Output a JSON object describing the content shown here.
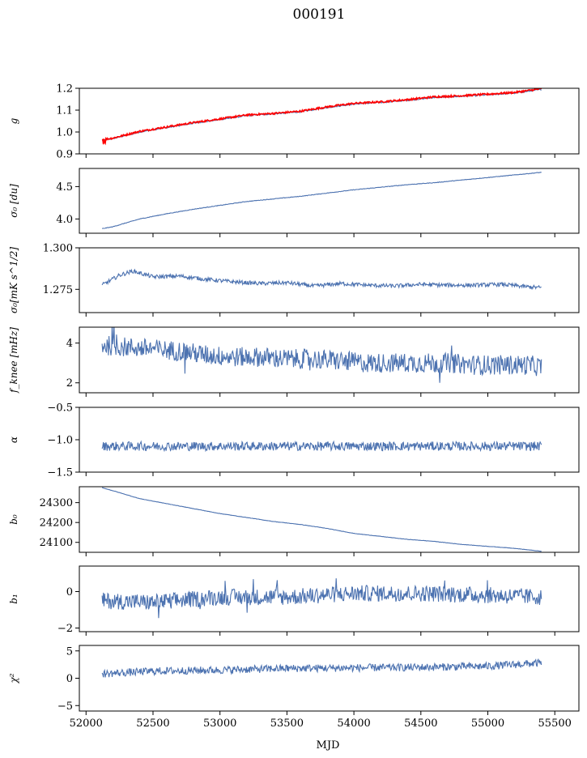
{
  "figure": {
    "title": "000191",
    "xlabel": "MJD"
  },
  "chart_data": [
    {
      "type": "line",
      "ylabel": "g",
      "ylim": [
        0.9,
        1.2
      ],
      "yticks": [
        "0.9",
        "1.0",
        "1.1",
        "1.2"
      ],
      "xlim": [
        51950,
        55680
      ],
      "series": [
        {
          "color": "#4c72b0",
          "x": [
            52120,
            52200,
            52400,
            52600,
            52800,
            53000,
            53200,
            53400,
            53600,
            53800,
            54000,
            54200,
            54400,
            54600,
            54800,
            55000,
            55200,
            55400
          ],
          "y": [
            0.962,
            0.97,
            1.0,
            1.02,
            1.04,
            1.057,
            1.075,
            1.083,
            1.092,
            1.112,
            1.128,
            1.135,
            1.145,
            1.158,
            1.163,
            1.17,
            1.178,
            1.195
          ],
          "noise": 0.003
        },
        {
          "color": "#ff0000",
          "x": [
            52120,
            52200,
            52400,
            52600,
            52800,
            53000,
            53200,
            53400,
            53600,
            53800,
            54000,
            54200,
            54400,
            54600,
            54800,
            55000,
            55200,
            55400
          ],
          "y": [
            0.965,
            0.972,
            1.003,
            1.023,
            1.043,
            1.06,
            1.078,
            1.085,
            1.095,
            1.115,
            1.131,
            1.138,
            1.148,
            1.161,
            1.166,
            1.173,
            1.181,
            1.198
          ],
          "noise": 0.004
        }
      ]
    },
    {
      "type": "line",
      "ylabel": "σ₀ [du]",
      "ylim": [
        3.78,
        4.78
      ],
      "yticks": [
        "4.0",
        "4.5"
      ],
      "xlim": [
        51950,
        55680
      ],
      "series": [
        {
          "color": "#4c72b0",
          "x": [
            52120,
            52200,
            52400,
            52600,
            52800,
            53000,
            53200,
            53400,
            53600,
            53800,
            54000,
            54200,
            54400,
            54600,
            54800,
            55000,
            55200,
            55400
          ],
          "y": [
            3.85,
            3.88,
            4.0,
            4.08,
            4.15,
            4.21,
            4.27,
            4.31,
            4.35,
            4.4,
            4.45,
            4.49,
            4.53,
            4.56,
            4.6,
            4.64,
            4.68,
            4.72
          ],
          "noise": 0.004
        }
      ]
    },
    {
      "type": "line",
      "ylabel": "σ₀[mK s^1/2]",
      "ylim": [
        1.261,
        1.3
      ],
      "yticks": [
        "1.275",
        "1.300"
      ],
      "xlim": [
        51950,
        55680
      ],
      "series": [
        {
          "color": "#4c72b0",
          "x": [
            52120,
            52250,
            52350,
            52500,
            52700,
            52900,
            53100,
            53300,
            53500,
            53700,
            53900,
            54100,
            54300,
            54500,
            54700,
            54900,
            55100,
            55300,
            55400
          ],
          "y": [
            1.2775,
            1.2835,
            1.286,
            1.2825,
            1.283,
            1.281,
            1.2795,
            1.2785,
            1.279,
            1.277,
            1.2785,
            1.2775,
            1.277,
            1.278,
            1.2775,
            1.2775,
            1.278,
            1.2765,
            1.276
          ],
          "noise": 0.0012
        }
      ]
    },
    {
      "type": "line",
      "ylabel": "f_knee [mHz]",
      "ylim": [
        1.5,
        4.8
      ],
      "yticks": [
        "2",
        "4"
      ],
      "xlim": [
        51950,
        55680
      ],
      "series": [
        {
          "color": "#4c72b0",
          "x": [
            52120,
            52300,
            52500,
            52700,
            52900,
            53100,
            53300,
            53500,
            53700,
            53900,
            54100,
            54300,
            54500,
            54700,
            54900,
            55100,
            55300,
            55400
          ],
          "y": [
            3.9,
            3.8,
            3.7,
            3.6,
            3.4,
            3.3,
            3.3,
            3.2,
            3.2,
            3.1,
            3.0,
            3.0,
            3.0,
            3.0,
            2.9,
            2.9,
            2.9,
            2.8
          ],
          "noise": 0.5
        }
      ]
    },
    {
      "type": "line",
      "ylabel": "α",
      "ylim": [
        -1.5,
        -0.5
      ],
      "yticks": [
        "−1.5",
        "−1.0",
        "−0.5"
      ],
      "xlim": [
        51950,
        55680
      ],
      "series": [
        {
          "color": "#4c72b0",
          "x": [
            52120,
            52500,
            53000,
            53500,
            54000,
            54500,
            55000,
            55400
          ],
          "y": [
            -1.1,
            -1.1,
            -1.1,
            -1.1,
            -1.1,
            -1.1,
            -1.1,
            -1.1
          ],
          "noise": 0.07
        }
      ]
    },
    {
      "type": "line",
      "ylabel": "b₀",
      "ylim": [
        24050,
        24380
      ],
      "yticks": [
        "24100",
        "24200",
        "24300"
      ],
      "xlim": [
        51950,
        55680
      ],
      "series": [
        {
          "color": "#4c72b0",
          "x": [
            52120,
            52200,
            52400,
            52600,
            52800,
            53000,
            53200,
            53400,
            53600,
            53800,
            54000,
            54200,
            54400,
            54600,
            54800,
            55000,
            55200,
            55400
          ],
          "y": [
            24375,
            24360,
            24320,
            24295,
            24270,
            24245,
            24225,
            24205,
            24190,
            24170,
            24145,
            24130,
            24115,
            24105,
            24090,
            24080,
            24070,
            24055
          ],
          "noise": 0.8
        }
      ]
    },
    {
      "type": "line",
      "ylabel": "b₁",
      "ylim": [
        -2.2,
        1.4
      ],
      "yticks": [
        "−2",
        "0"
      ],
      "xlim": [
        51950,
        55680
      ],
      "series": [
        {
          "color": "#4c72b0",
          "x": [
            52120,
            52500,
            53000,
            53500,
            54000,
            54500,
            55000,
            55400
          ],
          "y": [
            -0.5,
            -0.6,
            -0.3,
            -0.3,
            -0.1,
            -0.1,
            -0.2,
            -0.3
          ],
          "noise": 0.45
        }
      ]
    },
    {
      "type": "line",
      "ylabel": "χ²",
      "ylim": [
        -6,
        6
      ],
      "yticks": [
        "−5",
        "0",
        "5"
      ],
      "xlim": [
        51950,
        55680
      ],
      "xticks": [
        "52000",
        "52500",
        "53000",
        "53500",
        "54000",
        "54500",
        "55000",
        "55500"
      ],
      "series": [
        {
          "color": "#4c72b0",
          "x": [
            52120,
            52500,
            53000,
            53500,
            54000,
            54500,
            55000,
            55400
          ],
          "y": [
            0.8,
            1.3,
            1.5,
            1.8,
            1.9,
            2.0,
            2.2,
            2.8
          ],
          "noise": 0.7
        }
      ]
    }
  ]
}
